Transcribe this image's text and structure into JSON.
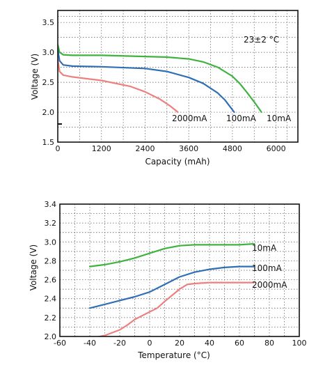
{
  "chart_data": [
    {
      "type": "line",
      "xlabel": "Capacity (mAh)",
      "ylabel": "Voltage (V)",
      "xlim": [
        0,
        6600
      ],
      "ylim": [
        1.5,
        3.7
      ],
      "xticks": [
        0,
        1200,
        2400,
        3600,
        4800,
        6000
      ],
      "yticks": [
        1.5,
        2.0,
        2.5,
        3.0,
        3.5
      ],
      "xtick_labels": [
        "0",
        "1200",
        "2400",
        "3600",
        "4800",
        "6000"
      ],
      "ytick_labels": [
        "1.5",
        "2.0",
        "2.5",
        "3.0",
        "3.5"
      ],
      "grid": true,
      "annotation": "23±2 °C",
      "series": [
        {
          "name": "10mA",
          "color": "#3fb23f",
          "x": [
            0,
            50,
            150,
            400,
            1200,
            2400,
            3000,
            3600,
            4000,
            4400,
            4800,
            5000,
            5200,
            5400,
            5600
          ],
          "y": [
            3.13,
            3.0,
            2.96,
            2.95,
            2.95,
            2.93,
            2.92,
            2.89,
            2.84,
            2.75,
            2.6,
            2.48,
            2.33,
            2.17,
            2.0
          ]
        },
        {
          "name": "100mA",
          "color": "#2f6fb5",
          "x": [
            0,
            50,
            150,
            400,
            1200,
            2400,
            3000,
            3600,
            4000,
            4400,
            4600,
            4750,
            4850
          ],
          "y": [
            3.05,
            2.86,
            2.79,
            2.77,
            2.76,
            2.73,
            2.68,
            2.58,
            2.48,
            2.32,
            2.2,
            2.08,
            2.0
          ]
        },
        {
          "name": "2000mA",
          "color": "#ee7f7f",
          "x": [
            0,
            50,
            150,
            400,
            1200,
            2000,
            2400,
            2800,
            3100,
            3300
          ],
          "y": [
            2.88,
            2.68,
            2.62,
            2.59,
            2.53,
            2.43,
            2.34,
            2.22,
            2.1,
            2.0
          ]
        }
      ],
      "legend_labels": [
        "2000mA",
        "100mA",
        "10mA"
      ]
    },
    {
      "type": "line",
      "xlabel": "Temperature (°C)",
      "ylabel": "Voltage (V)",
      "xlim": [
        -60,
        100
      ],
      "ylim": [
        2.0,
        3.4
      ],
      "xticks": [
        -60,
        -40,
        -20,
        0,
        20,
        40,
        60,
        80,
        100
      ],
      "yticks": [
        2.0,
        2.2,
        2.4,
        2.6,
        2.8,
        3.0,
        3.2,
        3.4
      ],
      "xtick_labels": [
        "-60",
        "-40",
        "-20",
        "0",
        "20",
        "40",
        "60",
        "80",
        "100"
      ],
      "ytick_labels": [
        "2.0",
        "2.2",
        "2.4",
        "2.6",
        "2.8",
        "3.0",
        "3.2",
        "3.4"
      ],
      "grid": true,
      "series": [
        {
          "name": "10mA",
          "color": "#3fb23f",
          "x": [
            -40,
            -30,
            -20,
            -10,
            0,
            10,
            20,
            30,
            40,
            50,
            60,
            70
          ],
          "y": [
            2.74,
            2.76,
            2.79,
            2.83,
            2.88,
            2.93,
            2.96,
            2.97,
            2.97,
            2.97,
            2.97,
            2.98
          ]
        },
        {
          "name": "100mA",
          "color": "#2f6fb5",
          "x": [
            -40,
            -30,
            -20,
            -10,
            0,
            10,
            20,
            30,
            40,
            50,
            60,
            70
          ],
          "y": [
            2.3,
            2.34,
            2.38,
            2.42,
            2.47,
            2.55,
            2.63,
            2.68,
            2.71,
            2.73,
            2.74,
            2.74
          ]
        },
        {
          "name": "2000mA",
          "color": "#ee7f7f",
          "x": [
            -40,
            -30,
            -20,
            -15,
            -10,
            0,
            5,
            10,
            20,
            25,
            30,
            40,
            50,
            60,
            70
          ],
          "y": [
            1.98,
            2.01,
            2.07,
            2.12,
            2.18,
            2.26,
            2.3,
            2.37,
            2.5,
            2.55,
            2.56,
            2.57,
            2.57,
            2.57,
            2.57
          ]
        }
      ],
      "legend_labels": [
        "10mA",
        "100mA",
        "2000mA"
      ]
    }
  ]
}
